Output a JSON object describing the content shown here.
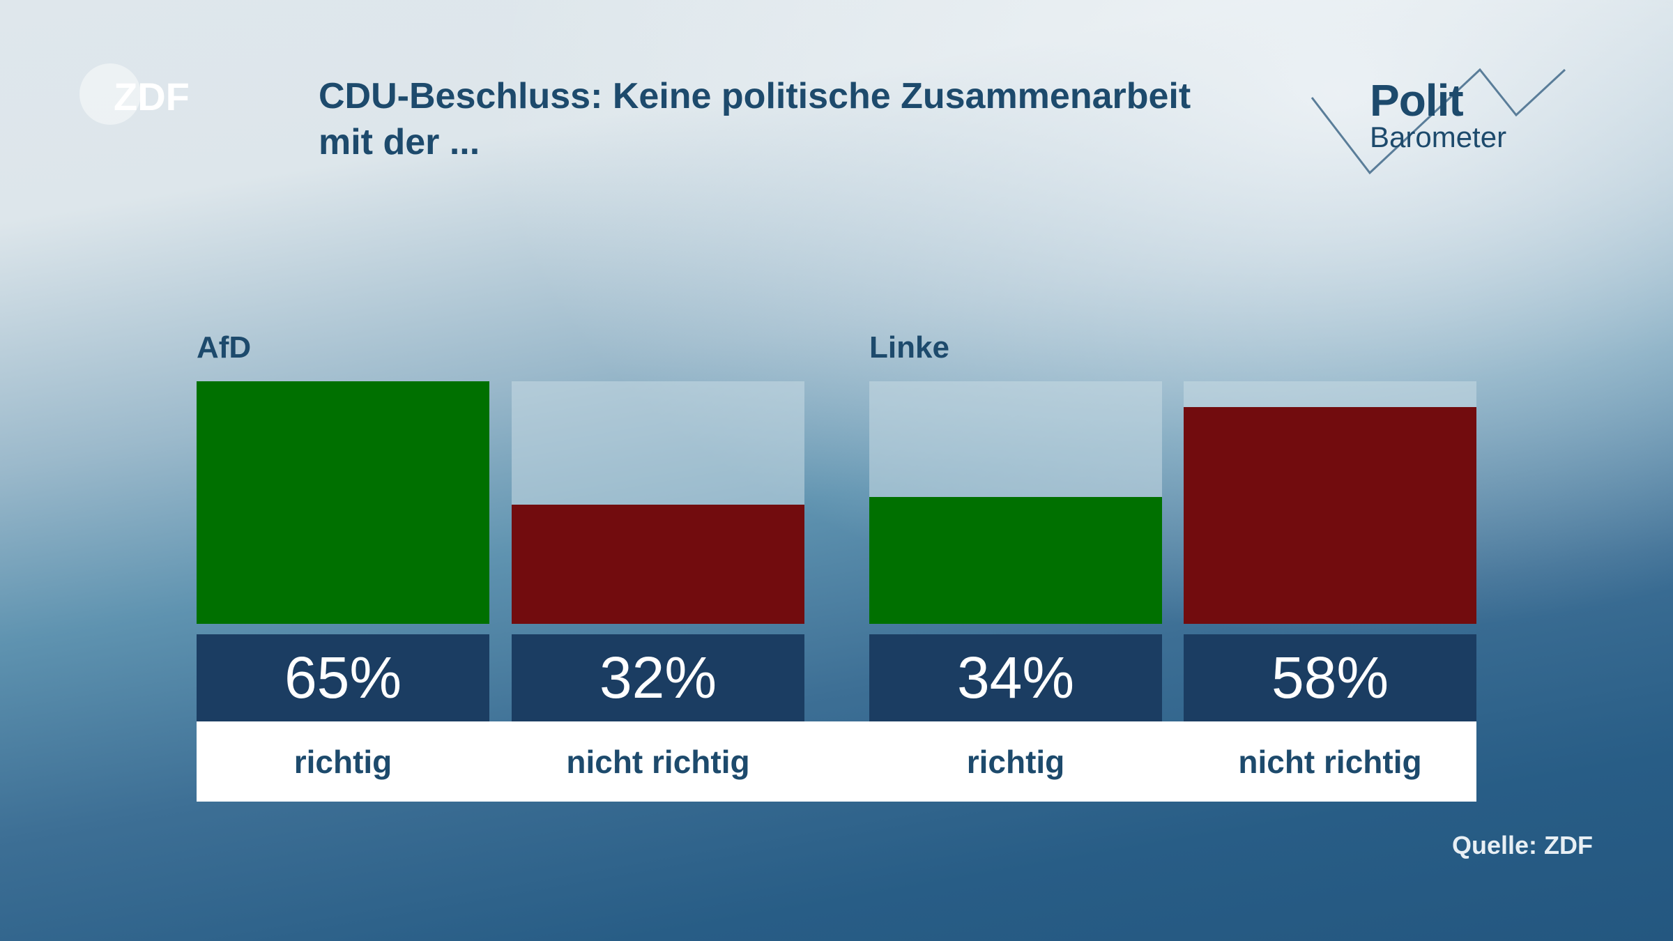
{
  "logo": "ZDF",
  "title_line1": "CDU-Beschluss: Keine politische Zusammenarbeit",
  "title_line2": "mit der ...",
  "brand": {
    "polit": "Polit",
    "barometer": "Barometer"
  },
  "source": "Quelle: ZDF",
  "colors": {
    "richtig": "#007000",
    "nicht_richtig": "#720c0e",
    "value_box": "#1b3d62",
    "text": "#1d4a6c"
  },
  "chart_data": {
    "type": "bar",
    "ylim": [
      0,
      65
    ],
    "groups": [
      {
        "name": "AfD",
        "bars": [
          {
            "category": "richtig",
            "value": 65,
            "label": "65%"
          },
          {
            "category": "nicht richtig",
            "value": 32,
            "label": "32%"
          }
        ]
      },
      {
        "name": "Linke",
        "bars": [
          {
            "category": "richtig",
            "value": 34,
            "label": "34%"
          },
          {
            "category": "nicht richtig",
            "value": 58,
            "label": "58%"
          }
        ]
      }
    ]
  }
}
